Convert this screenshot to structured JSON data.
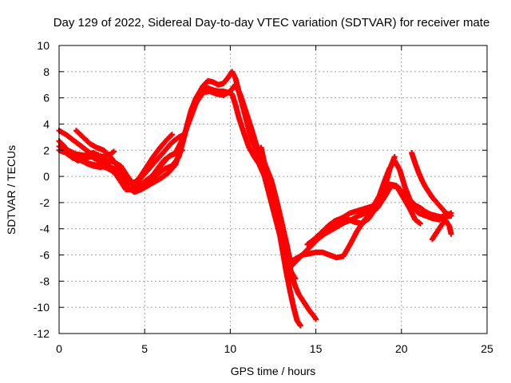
{
  "chart_data": {
    "type": "scatter",
    "title": "Day 129 of 2022, Sidereal Day-to-day VTEC variation (SDTVAR) for receiver mate",
    "xlabel": "GPS time / hours",
    "ylabel": "SDTVAR / TECUs",
    "xlim": [
      0,
      25
    ],
    "ylim": [
      -12,
      10
    ],
    "xticks": [
      "0",
      "5",
      "10",
      "15",
      "20",
      "25"
    ],
    "yticks": [
      "10",
      "8",
      "6",
      "4",
      "2",
      "0",
      "-2",
      "-4",
      "-6",
      "-8",
      "-10",
      "-12"
    ],
    "grid": true,
    "marker": "+",
    "color": "#ff0000",
    "series": [
      {
        "x": [
          0.0,
          0.3,
          0.6,
          1.0,
          1.3,
          1.7,
          2.0,
          2.4,
          2.7,
          3.0,
          3.3,
          3.6,
          3.9,
          4.2,
          4.6,
          5.0,
          5.4,
          5.8,
          6.2,
          6.6,
          7.0,
          7.4,
          7.7,
          8.0,
          8.3,
          8.6,
          9.0,
          9.3,
          9.6,
          9.9,
          10.1,
          10.3,
          10.5,
          10.8,
          11.1,
          11.4,
          11.7,
          12.0,
          12.3,
          12.6,
          12.9,
          13.1,
          13.3,
          13.5,
          13.7,
          13.9,
          14.1
        ],
        "y": [
          2.7,
          2.3,
          1.8,
          1.5,
          1.2,
          1.0,
          0.9,
          0.8,
          0.7,
          0.5,
          0.2,
          -0.4,
          -1.0,
          -1.0,
          -0.8,
          -0.5,
          -0.2,
          0.2,
          0.6,
          0.8,
          1.5,
          3.5,
          5.0,
          6.0,
          6.6,
          6.8,
          6.6,
          6.5,
          6.5,
          6.4,
          6.3,
          5.5,
          4.5,
          3.3,
          2.2,
          1.5,
          0.9,
          0.0,
          -1.5,
          -3.0,
          -4.5,
          -6.0,
          -7.5,
          -8.8,
          -10.0,
          -11.0,
          -11.4
        ]
      },
      {
        "x": [
          0.0,
          0.4,
          0.8,
          1.2,
          1.6,
          2.0,
          2.4,
          2.8,
          3.2,
          3.6,
          4.0,
          4.4,
          4.8,
          5.2,
          5.6,
          6.0,
          6.4,
          6.8,
          7.2,
          7.5,
          7.8,
          8.1,
          8.4,
          8.7,
          9.0,
          9.3,
          9.6,
          9.9,
          10.1,
          10.3,
          10.6,
          10.9,
          11.2,
          11.5,
          11.8,
          12.1,
          12.4,
          12.7,
          13.0,
          13.2,
          13.4,
          13.6,
          13.8,
          14.0,
          14.3,
          14.6,
          14.9,
          15.0
        ],
        "y": [
          2.0,
          1.8,
          1.4,
          1.3,
          1.0,
          0.8,
          0.7,
          0.8,
          0.6,
          0.0,
          -0.8,
          -1.2,
          -1.0,
          -0.7,
          -0.4,
          -0.1,
          0.3,
          0.9,
          2.5,
          4.0,
          5.3,
          6.2,
          6.9,
          7.3,
          7.2,
          7.0,
          7.1,
          7.6,
          8.0,
          7.5,
          6.0,
          4.5,
          3.0,
          2.0,
          1.2,
          0.5,
          -0.5,
          -2.0,
          -3.5,
          -5.0,
          -6.5,
          -7.6,
          -8.4,
          -9.0,
          -9.6,
          -10.2,
          -10.7,
          -10.9
        ]
      },
      {
        "x": [
          0.0,
          0.4,
          0.8,
          1.2,
          1.6,
          2.0,
          2.4,
          2.8,
          3.2,
          3.6,
          4.0,
          4.4,
          4.8,
          5.2,
          5.6,
          6.0,
          6.4,
          6.8,
          7.2,
          7.6,
          8.0,
          8.4,
          8.8,
          9.2,
          9.6,
          10.0,
          10.3,
          10.6,
          10.9,
          11.2,
          11.5,
          11.8,
          12.1,
          12.4,
          12.7,
          13.0,
          13.3,
          13.5
        ],
        "y": [
          3.5,
          3.2,
          2.8,
          2.4,
          2.0,
          1.6,
          1.4,
          1.2,
          1.1,
          0.8,
          0.0,
          -0.7,
          -0.6,
          -0.2,
          0.2,
          0.9,
          1.5,
          1.8,
          2.8,
          4.2,
          5.6,
          6.4,
          6.5,
          6.3,
          6.2,
          6.5,
          7.0,
          6.2,
          5.0,
          3.8,
          2.5,
          1.5,
          0.7,
          -0.3,
          -1.8,
          -3.5,
          -5.2,
          -6.5
        ]
      },
      {
        "x": [
          0.0,
          0.5,
          1.0,
          1.5,
          2.0,
          2.5,
          3.0,
          3.2
        ],
        "y": [
          2.3,
          2.0,
          1.7,
          1.6,
          1.8,
          1.5,
          1.7,
          1.9
        ]
      },
      {
        "x": [
          1.0,
          1.4,
          1.8,
          2.2,
          2.6,
          3.0,
          3.4,
          3.8,
          4.2,
          4.6,
          5.0,
          5.4,
          5.8,
          6.2,
          6.6,
          7.0,
          7.3
        ],
        "y": [
          3.5,
          3.0,
          2.5,
          2.2,
          2.0,
          1.5,
          0.8,
          0.0,
          -0.5,
          -0.4,
          0.2,
          0.8,
          1.4,
          2.0,
          2.6,
          3.0,
          3.2
        ]
      },
      {
        "x": [
          0.3,
          0.7,
          1.1,
          1.5,
          1.9,
          2.3,
          2.7,
          3.1,
          3.5,
          3.9,
          4.3,
          4.7,
          5.1,
          5.5,
          5.9,
          6.3,
          6.6
        ],
        "y": [
          2.0,
          1.6,
          1.2,
          1.4,
          1.5,
          1.2,
          1.0,
          0.6,
          0.2,
          -0.3,
          -0.6,
          -0.1,
          0.7,
          1.5,
          2.2,
          2.8,
          3.2
        ]
      },
      {
        "x": [
          4.5,
          4.9,
          5.3,
          5.7,
          6.1,
          6.5,
          6.9,
          7.2
        ],
        "y": [
          -0.8,
          -0.6,
          -0.2,
          0.5,
          1.2,
          1.6,
          1.8,
          2.0
        ]
      },
      {
        "x": [
          11.8,
          12.0,
          12.2,
          12.4,
          12.6,
          12.8,
          13.0,
          13.2,
          13.4,
          13.6,
          13.8
        ],
        "y": [
          2.2,
          1.0,
          -0.4,
          -1.6,
          -2.8,
          -3.8,
          -4.8,
          -5.8,
          -6.8,
          -7.4,
          -7.8
        ]
      },
      {
        "x": [
          13.3,
          13.6,
          13.9,
          14.2,
          14.5,
          14.8,
          15.1,
          15.5,
          15.9,
          16.3,
          16.7,
          17.1,
          17.5,
          17.9,
          18.3,
          18.7,
          19.0,
          19.3,
          19.6,
          19.9,
          20.2,
          20.5,
          20.8,
          21.1,
          21.4,
          21.7,
          22.0,
          22.3,
          22.6,
          22.9
        ],
        "y": [
          -7.2,
          -6.8,
          -6.4,
          -6.0,
          -5.6,
          -5.2,
          -4.8,
          -4.4,
          -4.1,
          -3.8,
          -3.5,
          -3.3,
          -3.0,
          -2.8,
          -2.4,
          -1.5,
          -0.4,
          0.6,
          1.2,
          0.5,
          -0.8,
          -1.8,
          -2.2,
          -2.4,
          -2.7,
          -2.9,
          -3.0,
          -3.1,
          -3.0,
          -2.8
        ]
      },
      {
        "x": [
          13.4,
          13.8,
          14.2,
          14.6,
          15.0,
          15.4,
          15.8,
          16.2,
          16.6,
          17.0,
          17.4,
          17.8,
          18.2,
          18.6,
          19.0,
          19.4,
          19.8,
          20.2,
          20.6,
          21.0,
          21.4,
          21.8,
          22.2,
          22.6,
          22.9
        ],
        "y": [
          -6.6,
          -6.3,
          -6.0,
          -5.9,
          -5.8,
          -5.8,
          -6.0,
          -6.2,
          -6.1,
          -5.2,
          -4.2,
          -3.4,
          -2.8,
          -2.4,
          -1.6,
          -0.7,
          -0.8,
          -1.5,
          -2.3,
          -2.8,
          -3.0,
          -3.2,
          -3.3,
          -3.1,
          -3.0
        ]
      },
      {
        "x": [
          14.5,
          14.9,
          15.3,
          15.7,
          16.1,
          16.5,
          16.9,
          17.3,
          17.7,
          18.1,
          18.5,
          18.9,
          19.3,
          19.7,
          20.1,
          20.5,
          20.8,
          21.1
        ],
        "y": [
          -5.2,
          -4.8,
          -4.3,
          -3.8,
          -3.4,
          -3.2,
          -3.3,
          -3.5,
          -3.6,
          -3.2,
          -2.4,
          -1.5,
          -0.6,
          -0.7,
          -1.6,
          -2.5,
          -3.3,
          -3.6
        ]
      },
      {
        "x": [
          15.5,
          16.0,
          16.5,
          17.0,
          17.5,
          18.0,
          18.5,
          19.0,
          19.3,
          19.6
        ],
        "y": [
          -4.2,
          -3.8,
          -3.2,
          -2.8,
          -2.6,
          -2.4,
          -2.2,
          -1.0,
          0.5,
          1.5
        ]
      },
      {
        "x": [
          20.6,
          20.8,
          21.0,
          21.2,
          21.4,
          21.6,
          21.8,
          22.0,
          22.2,
          22.4,
          22.6,
          22.9
        ],
        "y": [
          1.8,
          1.0,
          0.3,
          -0.3,
          -0.8,
          -1.2,
          -1.6,
          -1.9,
          -2.2,
          -2.5,
          -2.8,
          -3.0
        ]
      },
      {
        "x": [
          21.8,
          22.0,
          22.2,
          22.4,
          22.6,
          22.8,
          22.9
        ],
        "y": [
          -4.8,
          -4.4,
          -4.0,
          -3.6,
          -3.4,
          -3.8,
          -4.4
        ]
      }
    ]
  }
}
